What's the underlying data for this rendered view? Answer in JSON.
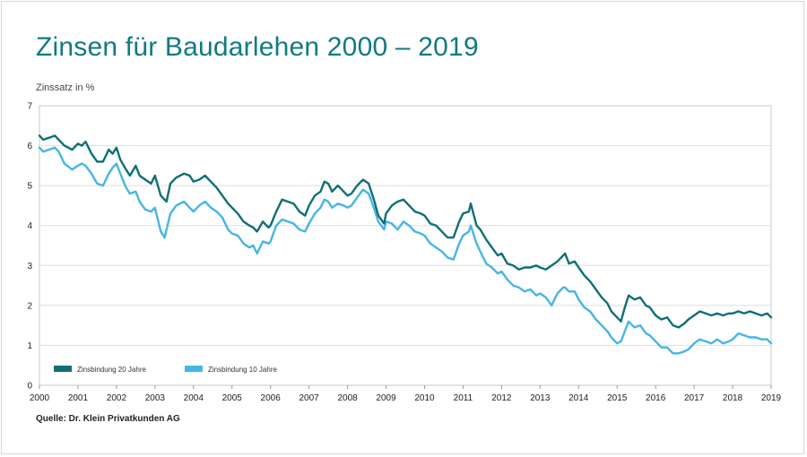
{
  "title": "Zinsen für Baudarlehen 2000 – 2019",
  "source": "Quelle: Dr. Klein Privatkunden AG",
  "colors": {
    "title": "#117a80",
    "series1": "#0f6f73",
    "series2": "#45b5e6"
  },
  "chart_data": {
    "type": "line",
    "title": "Zinsen für Baudarlehen 2000 – 2019",
    "xlabel": "",
    "ylabel": "Zinssatz in %",
    "xlim": [
      2000,
      2019
    ],
    "ylim": [
      0,
      7
    ],
    "x_ticks": [
      "2000",
      "2001",
      "2002",
      "2003",
      "2004",
      "2005",
      "2006",
      "2007",
      "2008",
      "2009",
      "2010",
      "2011",
      "2012",
      "2013",
      "2014",
      "2015",
      "2016",
      "2017",
      "2018",
      "2019"
    ],
    "y_ticks": [
      0,
      1,
      2,
      3,
      4,
      5,
      6,
      7
    ],
    "grid": "horizontal",
    "legend": "bottom-left",
    "series": [
      {
        "name": "Zinsbindung 20 Jahre",
        "color": "#0f6f73",
        "points": [
          [
            2000.0,
            6.25
          ],
          [
            2000.1,
            6.15
          ],
          [
            2000.25,
            6.2
          ],
          [
            2000.4,
            6.25
          ],
          [
            2000.5,
            6.15
          ],
          [
            2000.65,
            6.0
          ],
          [
            2000.85,
            5.9
          ],
          [
            2001.0,
            6.05
          ],
          [
            2001.1,
            6.0
          ],
          [
            2001.2,
            6.1
          ],
          [
            2001.35,
            5.8
          ],
          [
            2001.5,
            5.6
          ],
          [
            2001.65,
            5.6
          ],
          [
            2001.8,
            5.9
          ],
          [
            2001.9,
            5.8
          ],
          [
            2002.0,
            5.95
          ],
          [
            2002.1,
            5.65
          ],
          [
            2002.25,
            5.4
          ],
          [
            2002.35,
            5.25
          ],
          [
            2002.5,
            5.5
          ],
          [
            2002.6,
            5.25
          ],
          [
            2002.75,
            5.15
          ],
          [
            2002.9,
            5.05
          ],
          [
            2003.0,
            5.25
          ],
          [
            2003.15,
            4.75
          ],
          [
            2003.3,
            4.6
          ],
          [
            2003.4,
            5.05
          ],
          [
            2003.55,
            5.2
          ],
          [
            2003.75,
            5.3
          ],
          [
            2003.9,
            5.25
          ],
          [
            2004.0,
            5.1
          ],
          [
            2004.15,
            5.15
          ],
          [
            2004.3,
            5.25
          ],
          [
            2004.45,
            5.1
          ],
          [
            2004.6,
            4.95
          ],
          [
            2004.75,
            4.75
          ],
          [
            2004.9,
            4.55
          ],
          [
            2005.0,
            4.45
          ],
          [
            2005.15,
            4.3
          ],
          [
            2005.3,
            4.1
          ],
          [
            2005.45,
            4.0
          ],
          [
            2005.55,
            3.95
          ],
          [
            2005.65,
            3.85
          ],
          [
            2005.8,
            4.1
          ],
          [
            2005.95,
            3.95
          ],
          [
            2006.0,
            4.0
          ],
          [
            2006.15,
            4.35
          ],
          [
            2006.3,
            4.65
          ],
          [
            2006.45,
            4.6
          ],
          [
            2006.6,
            4.55
          ],
          [
            2006.75,
            4.35
          ],
          [
            2006.9,
            4.25
          ],
          [
            2007.0,
            4.5
          ],
          [
            2007.15,
            4.75
          ],
          [
            2007.3,
            4.85
          ],
          [
            2007.4,
            5.1
          ],
          [
            2007.5,
            5.05
          ],
          [
            2007.6,
            4.85
          ],
          [
            2007.75,
            5.0
          ],
          [
            2007.9,
            4.85
          ],
          [
            2008.0,
            4.75
          ],
          [
            2008.1,
            4.8
          ],
          [
            2008.25,
            5.0
          ],
          [
            2008.4,
            5.15
          ],
          [
            2008.55,
            5.05
          ],
          [
            2008.7,
            4.6
          ],
          [
            2008.8,
            4.25
          ],
          [
            2008.95,
            4.05
          ],
          [
            2009.0,
            4.3
          ],
          [
            2009.15,
            4.5
          ],
          [
            2009.3,
            4.6
          ],
          [
            2009.45,
            4.65
          ],
          [
            2009.6,
            4.5
          ],
          [
            2009.75,
            4.35
          ],
          [
            2009.9,
            4.3
          ],
          [
            2010.0,
            4.25
          ],
          [
            2010.15,
            4.05
          ],
          [
            2010.3,
            4.0
          ],
          [
            2010.45,
            3.85
          ],
          [
            2010.6,
            3.7
          ],
          [
            2010.75,
            3.7
          ],
          [
            2010.9,
            4.1
          ],
          [
            2011.0,
            4.3
          ],
          [
            2011.15,
            4.35
          ],
          [
            2011.2,
            4.55
          ],
          [
            2011.35,
            4.0
          ],
          [
            2011.45,
            3.9
          ],
          [
            2011.6,
            3.65
          ],
          [
            2011.75,
            3.45
          ],
          [
            2011.9,
            3.25
          ],
          [
            2012.0,
            3.3
          ],
          [
            2012.15,
            3.05
          ],
          [
            2012.3,
            3.0
          ],
          [
            2012.45,
            2.9
          ],
          [
            2012.6,
            2.95
          ],
          [
            2012.75,
            2.95
          ],
          [
            2012.9,
            3.0
          ],
          [
            2013.0,
            2.95
          ],
          [
            2013.15,
            2.9
          ],
          [
            2013.3,
            3.0
          ],
          [
            2013.45,
            3.1
          ],
          [
            2013.6,
            3.25
          ],
          [
            2013.65,
            3.3
          ],
          [
            2013.75,
            3.05
          ],
          [
            2013.9,
            3.1
          ],
          [
            2014.0,
            2.95
          ],
          [
            2014.15,
            2.75
          ],
          [
            2014.3,
            2.6
          ],
          [
            2014.45,
            2.4
          ],
          [
            2014.6,
            2.2
          ],
          [
            2014.75,
            2.05
          ],
          [
            2014.85,
            1.85
          ],
          [
            2015.0,
            1.7
          ],
          [
            2015.1,
            1.6
          ],
          [
            2015.2,
            1.95
          ],
          [
            2015.3,
            2.25
          ],
          [
            2015.45,
            2.15
          ],
          [
            2015.6,
            2.2
          ],
          [
            2015.75,
            2.0
          ],
          [
            2015.85,
            1.95
          ],
          [
            2016.0,
            1.75
          ],
          [
            2016.15,
            1.65
          ],
          [
            2016.3,
            1.7
          ],
          [
            2016.45,
            1.5
          ],
          [
            2016.6,
            1.45
          ],
          [
            2016.75,
            1.55
          ],
          [
            2016.85,
            1.65
          ],
          [
            2017.0,
            1.75
          ],
          [
            2017.15,
            1.85
          ],
          [
            2017.3,
            1.8
          ],
          [
            2017.45,
            1.75
          ],
          [
            2017.6,
            1.8
          ],
          [
            2017.75,
            1.75
          ],
          [
            2017.9,
            1.8
          ],
          [
            2018.0,
            1.8
          ],
          [
            2018.15,
            1.85
          ],
          [
            2018.3,
            1.8
          ],
          [
            2018.45,
            1.85
          ],
          [
            2018.6,
            1.8
          ],
          [
            2018.75,
            1.75
          ],
          [
            2018.9,
            1.8
          ],
          [
            2019.0,
            1.7
          ]
        ]
      },
      {
        "name": "Zinsbindung 10 Jahre",
        "color": "#45b5e6",
        "points": [
          [
            2000.0,
            5.95
          ],
          [
            2000.1,
            5.85
          ],
          [
            2000.25,
            5.9
          ],
          [
            2000.4,
            5.95
          ],
          [
            2000.5,
            5.85
          ],
          [
            2000.65,
            5.55
          ],
          [
            2000.85,
            5.4
          ],
          [
            2001.0,
            5.5
          ],
          [
            2001.1,
            5.55
          ],
          [
            2001.2,
            5.5
          ],
          [
            2001.35,
            5.3
          ],
          [
            2001.5,
            5.05
          ],
          [
            2001.65,
            5.0
          ],
          [
            2001.8,
            5.3
          ],
          [
            2001.9,
            5.45
          ],
          [
            2002.0,
            5.55
          ],
          [
            2002.1,
            5.3
          ],
          [
            2002.25,
            4.95
          ],
          [
            2002.35,
            4.8
          ],
          [
            2002.5,
            4.85
          ],
          [
            2002.6,
            4.6
          ],
          [
            2002.75,
            4.4
          ],
          [
            2002.9,
            4.35
          ],
          [
            2003.0,
            4.45
          ],
          [
            2003.15,
            3.85
          ],
          [
            2003.25,
            3.7
          ],
          [
            2003.4,
            4.3
          ],
          [
            2003.55,
            4.5
          ],
          [
            2003.75,
            4.6
          ],
          [
            2003.9,
            4.45
          ],
          [
            2004.0,
            4.35
          ],
          [
            2004.15,
            4.5
          ],
          [
            2004.3,
            4.6
          ],
          [
            2004.45,
            4.45
          ],
          [
            2004.6,
            4.35
          ],
          [
            2004.75,
            4.2
          ],
          [
            2004.9,
            3.9
          ],
          [
            2005.0,
            3.8
          ],
          [
            2005.15,
            3.75
          ],
          [
            2005.3,
            3.55
          ],
          [
            2005.45,
            3.45
          ],
          [
            2005.55,
            3.5
          ],
          [
            2005.65,
            3.3
          ],
          [
            2005.8,
            3.6
          ],
          [
            2005.95,
            3.55
          ],
          [
            2006.0,
            3.6
          ],
          [
            2006.15,
            4.0
          ],
          [
            2006.3,
            4.15
          ],
          [
            2006.45,
            4.1
          ],
          [
            2006.6,
            4.05
          ],
          [
            2006.75,
            3.9
          ],
          [
            2006.9,
            3.85
          ],
          [
            2007.0,
            4.05
          ],
          [
            2007.15,
            4.3
          ],
          [
            2007.3,
            4.45
          ],
          [
            2007.4,
            4.65
          ],
          [
            2007.5,
            4.6
          ],
          [
            2007.6,
            4.45
          ],
          [
            2007.75,
            4.55
          ],
          [
            2007.9,
            4.5
          ],
          [
            2008.0,
            4.45
          ],
          [
            2008.1,
            4.5
          ],
          [
            2008.25,
            4.7
          ],
          [
            2008.4,
            4.9
          ],
          [
            2008.55,
            4.8
          ],
          [
            2008.7,
            4.4
          ],
          [
            2008.8,
            4.1
          ],
          [
            2008.95,
            3.9
          ],
          [
            2009.0,
            4.1
          ],
          [
            2009.15,
            4.05
          ],
          [
            2009.3,
            3.9
          ],
          [
            2009.45,
            4.1
          ],
          [
            2009.6,
            4.0
          ],
          [
            2009.75,
            3.85
          ],
          [
            2009.9,
            3.8
          ],
          [
            2010.0,
            3.75
          ],
          [
            2010.15,
            3.55
          ],
          [
            2010.3,
            3.45
          ],
          [
            2010.45,
            3.35
          ],
          [
            2010.6,
            3.2
          ],
          [
            2010.75,
            3.15
          ],
          [
            2010.9,
            3.55
          ],
          [
            2011.0,
            3.75
          ],
          [
            2011.15,
            3.85
          ],
          [
            2011.2,
            4.0
          ],
          [
            2011.35,
            3.55
          ],
          [
            2011.45,
            3.35
          ],
          [
            2011.6,
            3.05
          ],
          [
            2011.75,
            2.95
          ],
          [
            2011.9,
            2.8
          ],
          [
            2012.0,
            2.85
          ],
          [
            2012.15,
            2.65
          ],
          [
            2012.3,
            2.5
          ],
          [
            2012.45,
            2.45
          ],
          [
            2012.6,
            2.35
          ],
          [
            2012.75,
            2.4
          ],
          [
            2012.9,
            2.25
          ],
          [
            2013.0,
            2.3
          ],
          [
            2013.15,
            2.2
          ],
          [
            2013.3,
            2.0
          ],
          [
            2013.45,
            2.3
          ],
          [
            2013.6,
            2.45
          ],
          [
            2013.65,
            2.45
          ],
          [
            2013.75,
            2.35
          ],
          [
            2013.9,
            2.35
          ],
          [
            2014.0,
            2.15
          ],
          [
            2014.15,
            1.95
          ],
          [
            2014.3,
            1.85
          ],
          [
            2014.45,
            1.65
          ],
          [
            2014.6,
            1.5
          ],
          [
            2014.75,
            1.35
          ],
          [
            2014.85,
            1.2
          ],
          [
            2015.0,
            1.05
          ],
          [
            2015.1,
            1.1
          ],
          [
            2015.2,
            1.35
          ],
          [
            2015.3,
            1.6
          ],
          [
            2015.45,
            1.45
          ],
          [
            2015.6,
            1.5
          ],
          [
            2015.75,
            1.3
          ],
          [
            2015.85,
            1.25
          ],
          [
            2016.0,
            1.1
          ],
          [
            2016.15,
            0.95
          ],
          [
            2016.3,
            0.95
          ],
          [
            2016.45,
            0.8
          ],
          [
            2016.6,
            0.8
          ],
          [
            2016.75,
            0.85
          ],
          [
            2016.85,
            0.9
          ],
          [
            2017.0,
            1.05
          ],
          [
            2017.15,
            1.15
          ],
          [
            2017.3,
            1.1
          ],
          [
            2017.45,
            1.05
          ],
          [
            2017.6,
            1.15
          ],
          [
            2017.75,
            1.05
          ],
          [
            2017.9,
            1.1
          ],
          [
            2018.0,
            1.15
          ],
          [
            2018.15,
            1.3
          ],
          [
            2018.3,
            1.25
          ],
          [
            2018.45,
            1.2
          ],
          [
            2018.6,
            1.2
          ],
          [
            2018.75,
            1.15
          ],
          [
            2018.9,
            1.15
          ],
          [
            2019.0,
            1.05
          ]
        ]
      }
    ]
  }
}
